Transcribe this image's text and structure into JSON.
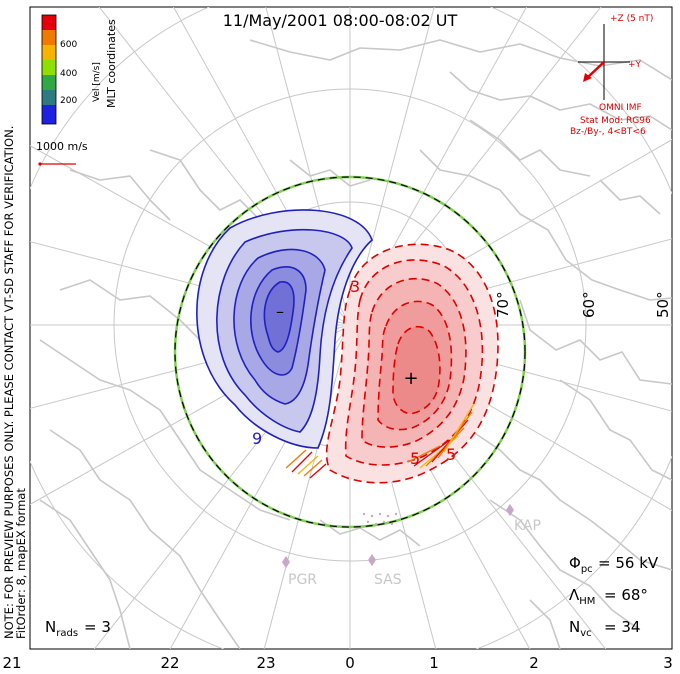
{
  "title": "11/May/2001  08:00-08:02  UT",
  "side_note_line1": "NOTE: FOR PREVIEW PURPOSES ONLY. PLEASE CONTACT VT-SD STAFF FOR VERIFICATION.",
  "side_note_line2": "FitOrder: 8, mapEX format",
  "coord_label": "MLT coordinates",
  "colorbar": {
    "title": "Vel [m/s]",
    "ticks": [
      "600",
      "400",
      "200"
    ],
    "colors": [
      "#e3000b",
      "#f07a00",
      "#f4b400",
      "#8ee000",
      "#2fa845",
      "#2d7a80",
      "#2020e0"
    ]
  },
  "scale_vector": {
    "label": "1000 m/s",
    "color": "#e00000"
  },
  "imf": {
    "z_label": "+Z (5 nT)",
    "y_label": "+Y",
    "omni_label": "OMNI IMF",
    "model_line1": "Stat Mod: RG96",
    "model_line2": "Bz-/By-, 4<BT<6",
    "color": "#e00000"
  },
  "latitude_labels": [
    "70°",
    "60°",
    "50°"
  ],
  "contour_labels": [
    "3",
    "9",
    "5",
    "5"
  ],
  "potential_min_marker": "–",
  "potential_max_marker": "+",
  "stations": [
    "PGR",
    "SAS",
    "KAP"
  ],
  "stats": {
    "phi_pc_symbol": "Φ",
    "phi_pc_sub": "pc",
    "phi_pc_value": "= 56 kV",
    "lambda_hm_symbol": "Λ",
    "lambda_hm_sub": "HM",
    "lambda_hm_value": "= 68°",
    "n_vc_symbol": "N",
    "n_vc_sub": "vc",
    "n_vc_value": "= 34",
    "n_rads_symbol": "N",
    "n_rads_sub": "rads",
    "n_rads_value": "= 3"
  },
  "mlt_labels": [
    "21",
    "22",
    "23",
    "0",
    "1",
    "2",
    "3"
  ],
  "colors": {
    "grid": "#c8c8c8",
    "coast": "#c8c8c8",
    "negative_cell": "#2020c0",
    "positive_cell": "#e00000",
    "boundary_green": "#7fd050",
    "station": "#c8a8c8"
  }
}
